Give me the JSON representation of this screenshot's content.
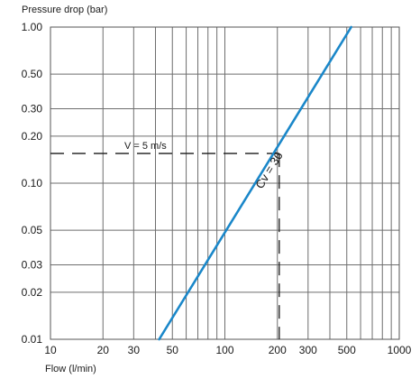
{
  "chart_data": {
    "type": "line",
    "ylabel": "Pressure drop (bar)",
    "xlabel": "Flow (l/min)",
    "x_scale": "log",
    "y_scale": "log",
    "xlim": [
      10,
      1000
    ],
    "ylim": [
      0.01,
      1
    ],
    "grid": true,
    "x_ticks": [
      10,
      20,
      30,
      50,
      100,
      200,
      300,
      500,
      1000
    ],
    "x_tick_labels": [
      "10",
      "20",
      "30",
      "50",
      "100",
      "200",
      "300",
      "500",
      "1000"
    ],
    "x_grid": [
      10,
      20,
      30,
      40,
      50,
      60,
      70,
      80,
      90,
      100,
      200,
      300,
      400,
      500,
      600,
      700,
      800,
      900,
      1000
    ],
    "y_ticks": [
      0.01,
      0.02,
      0.03,
      0.05,
      0.1,
      0.2,
      0.3,
      0.5,
      1
    ],
    "y_tick_labels": [
      "0.01",
      "0.02",
      "0.03",
      "0.05",
      "0.10",
      "0.20",
      "0.30",
      "0.50",
      "1.00"
    ],
    "y_grid": [
      0.01,
      0.02,
      0.03,
      0.05,
      0.1,
      0.2,
      0.3,
      0.5,
      1
    ],
    "series": [
      {
        "name": "Cv = 36",
        "color": "#1a87c9",
        "x": [
          42,
          530
        ],
        "y": [
          0.01,
          1
        ]
      }
    ],
    "reference": {
      "label": "V = 5 m/s",
      "flow": 205,
      "pressure": 0.155
    }
  }
}
